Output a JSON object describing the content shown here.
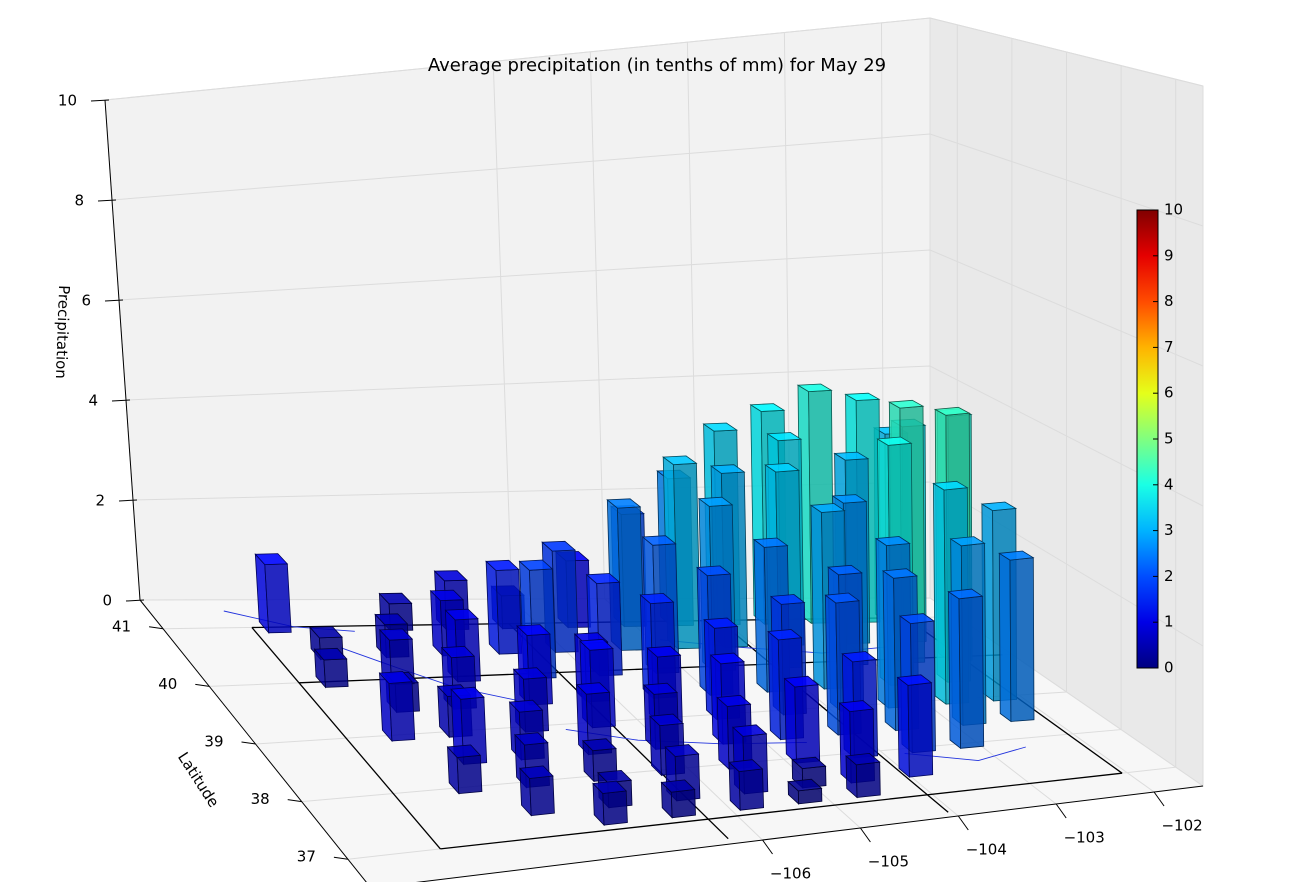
{
  "chart_data": {
    "type": "bar3d",
    "title": "Average precipitation (in tenths of mm) for May 29",
    "ylabel": "Latitude",
    "zlabel": "Precipitation",
    "xlim": [
      -110,
      -101.5
    ],
    "ylim": [
      36.5,
      41.5
    ],
    "zlim": [
      0,
      10
    ],
    "xticks": [
      {
        "value": -106,
        "label": "−106"
      },
      {
        "value": -105,
        "label": "−105"
      },
      {
        "value": -104,
        "label": "−104"
      },
      {
        "value": -103,
        "label": "−103"
      },
      {
        "value": -102,
        "label": "−102"
      }
    ],
    "yticks": [
      37,
      38,
      39,
      40,
      41
    ],
    "zticks": [
      0,
      2,
      4,
      6,
      8,
      10
    ],
    "grid": true,
    "colormap": "jet",
    "clim": [
      0,
      10
    ],
    "colorbar_ticks": [
      0,
      1,
      2,
      3,
      4,
      5,
      6,
      7,
      8,
      9,
      10
    ],
    "x": [
      -108.8,
      -107.5,
      -106.9,
      -106.3,
      -105.6,
      -105.0,
      -104.5,
      -104.0,
      -103.5,
      -103.0,
      -102.5,
      -102.2,
      -108.5,
      -107.8,
      -107.2,
      -106.6,
      -106.0,
      -105.3,
      -104.7,
      -104.2,
      -103.6,
      -102.9,
      -102.3,
      -108.7,
      -108.0,
      -107.3,
      -106.5,
      -105.8,
      -105.2,
      -104.6,
      -103.9,
      -103.2,
      -102.6,
      -102.1,
      -108.2,
      -107.6,
      -106.8,
      -106.2,
      -105.5,
      -104.9,
      -104.3,
      -103.7,
      -103.0,
      -102.4,
      -108.5,
      -107.9,
      -107.1,
      -106.4,
      -105.7,
      -105.1,
      -104.4,
      -103.8,
      -103.3,
      -102.7,
      -102.2,
      -108.0,
      -107.4,
      -106.7,
      -106.0,
      -105.3,
      -104.7,
      -104.1,
      -103.5,
      -102.8,
      -102.3,
      -108.3,
      -107.6,
      -106.9,
      -106.2,
      -105.5,
      -104.8,
      -104.2,
      -103.6,
      -103.1,
      -107.8,
      -107.0,
      -106.3,
      -105.6,
      -105.0,
      -104.5,
      -103.9,
      -107.2,
      -106.5,
      -105.8,
      -105.2,
      -104.6
    ],
    "y": [
      41.0,
      41.0,
      41.0,
      41.0,
      41.0,
      41.0,
      41.0,
      41.0,
      41.0,
      41.0,
      41.0,
      41.0,
      40.5,
      40.5,
      40.5,
      40.5,
      40.5,
      40.5,
      40.5,
      40.5,
      40.5,
      40.5,
      40.5,
      40.0,
      40.0,
      40.0,
      40.0,
      40.0,
      40.0,
      40.0,
      40.0,
      40.0,
      40.0,
      40.0,
      39.5,
      39.5,
      39.5,
      39.5,
      39.5,
      39.5,
      39.5,
      39.5,
      39.5,
      39.5,
      39.0,
      39.0,
      39.0,
      39.0,
      39.0,
      39.0,
      39.0,
      39.0,
      39.0,
      39.0,
      39.0,
      38.5,
      38.5,
      38.5,
      38.5,
      38.5,
      38.5,
      38.5,
      38.5,
      38.5,
      38.5,
      38.0,
      38.0,
      38.0,
      38.0,
      38.0,
      38.0,
      38.0,
      38.0,
      38.0,
      37.5,
      37.5,
      37.5,
      37.5,
      37.5,
      37.5,
      37.5,
      37.2,
      37.2,
      37.2,
      37.2,
      37.2
    ],
    "values": [
      1.3,
      0.5,
      0.9,
      0.6,
      1.2,
      2.0,
      2.6,
      3.4,
      3.7,
      4.0,
      3.8,
      3.2,
      0.4,
      0.6,
      1.0,
      1.5,
      1.8,
      2.5,
      3.2,
      3.0,
      3.5,
      3.1,
      3.6,
      0.5,
      0.8,
      1.1,
      1.9,
      1.6,
      2.2,
      2.8,
      3.3,
      2.7,
      4.2,
      4.0,
      0.5,
      0.9,
      1.2,
      1.0,
      1.6,
      2.0,
      2.4,
      2.9,
      3.9,
      4.3,
      1.0,
      0.7,
      0.9,
      1.3,
      1.1,
      1.5,
      1.8,
      2.2,
      2.6,
      3.4,
      3.0,
      1.1,
      0.8,
      1.0,
      0.9,
      1.3,
      1.6,
      2.1,
      2.4,
      2.8,
      2.5,
      0.6,
      0.7,
      0.5,
      0.8,
      1.0,
      1.2,
      1.5,
      2.0,
      2.3,
      0.6,
      0.4,
      0.7,
      0.9,
      0.3,
      1.1,
      1.4,
      0.5,
      0.4,
      0.6,
      0.2,
      0.5
    ]
  }
}
